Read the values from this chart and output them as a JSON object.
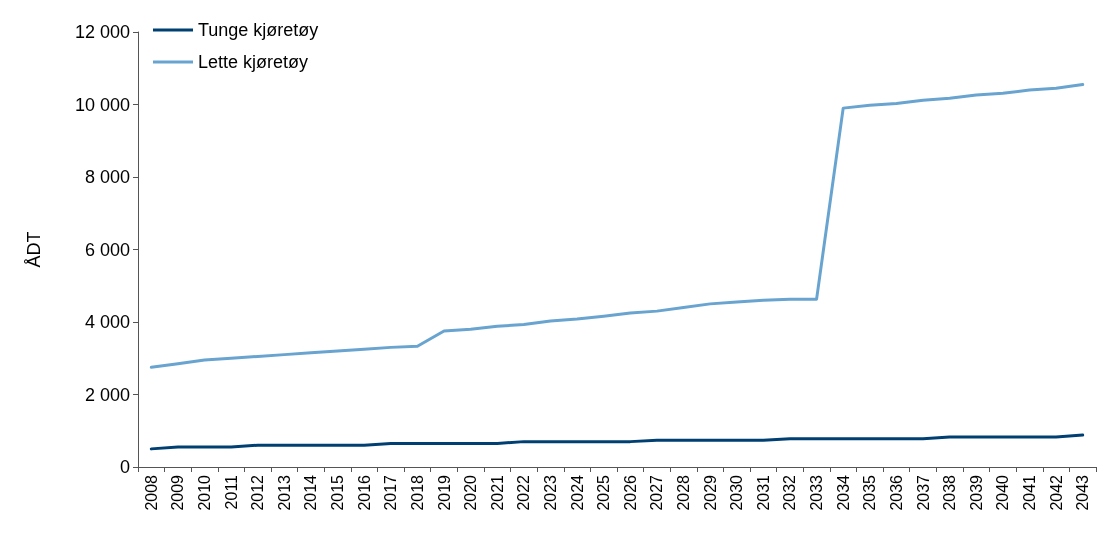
{
  "chart_data": {
    "type": "line",
    "ylabel": "ÅDT",
    "categories": [
      "2008",
      "2009",
      "2010",
      "2011",
      "2012",
      "2013",
      "2014",
      "2015",
      "2016",
      "2017",
      "2018",
      "2019",
      "2020",
      "2021",
      "2022",
      "2023",
      "2024",
      "2025",
      "2026",
      "2027",
      "2028",
      "2029",
      "2030",
      "2031",
      "2032",
      "2033",
      "2034",
      "2035",
      "2036",
      "2037",
      "2038",
      "2039",
      "2040",
      "2041",
      "2042",
      "2043"
    ],
    "ylim": [
      0,
      12000
    ],
    "yticks": [
      {
        "value": 0,
        "label": "0"
      },
      {
        "value": 2000,
        "label": "2 000"
      },
      {
        "value": 4000,
        "label": "4 000"
      },
      {
        "value": 6000,
        "label": "6 000"
      },
      {
        "value": 8000,
        "label": "8 000"
      },
      {
        "value": 10000,
        "label": "10 000"
      },
      {
        "value": 12000,
        "label": "12 000"
      }
    ],
    "grid": false,
    "legend": "top left",
    "marker": "none",
    "line_style": "solid",
    "series": [
      {
        "name": "Tunge kjøretøy",
        "color": "#003f72",
        "values": [
          500,
          550,
          550,
          550,
          600,
          600,
          600,
          600,
          600,
          650,
          650,
          650,
          650,
          650,
          700,
          700,
          700,
          700,
          700,
          740,
          740,
          740,
          740,
          740,
          780,
          780,
          780,
          780,
          780,
          780,
          830,
          830,
          830,
          830,
          830,
          880
        ]
      },
      {
        "name": "Lette kjøretøy",
        "color": "#68a4cf",
        "values": [
          2750,
          2850,
          2950,
          3000,
          3050,
          3100,
          3150,
          3200,
          3250,
          3300,
          3330,
          3750,
          3800,
          3880,
          3930,
          4030,
          4080,
          4160,
          4250,
          4300,
          4400,
          4500,
          4550,
          4600,
          4630,
          4630,
          9900,
          9980,
          10030,
          10120,
          10170,
          10260,
          10310,
          10400,
          10450,
          10550
        ]
      }
    ]
  }
}
